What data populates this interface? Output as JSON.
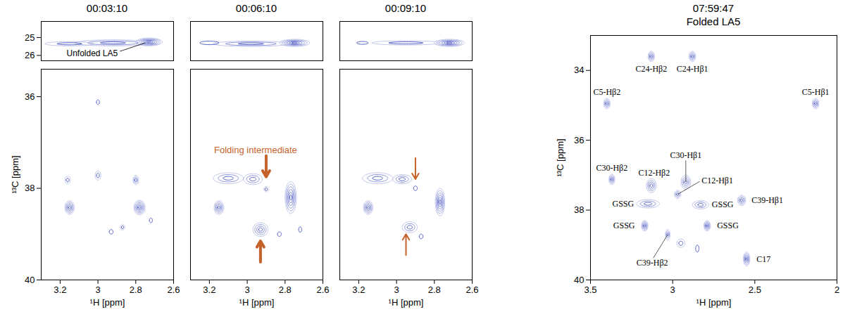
{
  "chart_data": [
    {
      "type": "contour",
      "title": "00:03:10",
      "xlabel": "¹H [ppm]",
      "ylabel": "¹³C [ppm]",
      "xlim": [
        3.3,
        2.6
      ],
      "xticks": [
        3.2,
        3,
        2.8,
        2.6
      ],
      "color": "#2b3bb8",
      "segments": [
        {
          "ylim": [
            26.3,
            24.1
          ],
          "yticks": [
            25,
            26
          ],
          "peaks": [
            {
              "x": 2.73,
              "y": 25.25,
              "x_width": 0.07,
              "y_width": 0.22,
              "intensity": 7
            },
            {
              "x": 2.92,
              "y": 25.3,
              "x_width": 0.2,
              "y_width": 0.17,
              "intensity": 3
            },
            {
              "x": 3.15,
              "y": 25.35,
              "x_width": 0.13,
              "y_width": 0.12,
              "intensity": 2
            }
          ],
          "annotations": [
            {
              "text": "Unfolded LA5",
              "x": 2.75,
              "y": 25.3
            }
          ]
        },
        {
          "ylim": [
            40,
            35.4
          ],
          "yticks": [
            36,
            38,
            40
          ],
          "peaks": [
            {
              "x": 3.15,
              "y": 38.42,
              "x_width": 0.025,
              "y_width": 0.15,
              "intensity": 5
            },
            {
              "x": 2.78,
              "y": 38.42,
              "x_width": 0.03,
              "y_width": 0.16,
              "intensity": 6
            },
            {
              "x": 3.16,
              "y": 37.82,
              "x_width": 0.015,
              "y_width": 0.08,
              "intensity": 2
            },
            {
              "x": 3.0,
              "y": 37.72,
              "x_width": 0.015,
              "y_width": 0.1,
              "intensity": 2
            },
            {
              "x": 2.8,
              "y": 37.82,
              "x_width": 0.015,
              "y_width": 0.1,
              "intensity": 3
            },
            {
              "x": 2.87,
              "y": 38.85,
              "x_width": 0.012,
              "y_width": 0.06,
              "intensity": 2
            },
            {
              "x": 2.93,
              "y": 38.95,
              "x_width": 0.01,
              "y_width": 0.05,
              "intensity": 1
            },
            {
              "x": 3.0,
              "y": 36.12,
              "x_width": 0.008,
              "y_width": 0.05,
              "intensity": 1
            },
            {
              "x": 2.72,
              "y": 38.7,
              "x_width": 0.008,
              "y_width": 0.05,
              "intensity": 1
            }
          ]
        }
      ]
    },
    {
      "type": "contour",
      "title": "00:06:10",
      "xlabel": "¹H [ppm]",
      "tick_labels": "x",
      "xlim": [
        3.3,
        2.6
      ],
      "xticks": [
        3.2,
        3,
        2.8,
        2.6
      ],
      "color": "#2b3bb8",
      "segments": [
        {
          "ylim": [
            26.3,
            24.1
          ],
          "peaks": [
            {
              "x": 2.75,
              "y": 25.3,
              "x_width": 0.08,
              "y_width": 0.2,
              "intensity": 6
            },
            {
              "x": 2.98,
              "y": 25.35,
              "x_width": 0.2,
              "y_width": 0.15,
              "intensity": 3
            },
            {
              "x": 3.2,
              "y": 25.3,
              "x_width": 0.05,
              "y_width": 0.1,
              "intensity": 1
            }
          ]
        },
        {
          "ylim": [
            40,
            35.4
          ],
          "peaks": [
            {
              "x": 3.15,
              "y": 38.42,
              "x_width": 0.025,
              "y_width": 0.15,
              "intensity": 5
            },
            {
              "x": 2.77,
              "y": 38.2,
              "x_width": 0.03,
              "y_width": 0.35,
              "intensity": 6
            },
            {
              "x": 3.1,
              "y": 37.78,
              "x_width": 0.08,
              "y_width": 0.12,
              "intensity": 3
            },
            {
              "x": 2.97,
              "y": 37.8,
              "x_width": 0.05,
              "y_width": 0.12,
              "intensity": 3
            },
            {
              "x": 2.9,
              "y": 38.02,
              "x_width": 0.012,
              "y_width": 0.06,
              "intensity": 2
            },
            {
              "x": 2.93,
              "y": 38.9,
              "x_width": 0.04,
              "y_width": 0.15,
              "intensity": 4
            },
            {
              "x": 2.83,
              "y": 39.0,
              "x_width": 0.01,
              "y_width": 0.05,
              "intensity": 1
            },
            {
              "x": 2.72,
              "y": 38.9,
              "x_width": 0.008,
              "y_width": 0.06,
              "intensity": 1
            }
          ],
          "annotations": [
            {
              "text": "Folding intermediate",
              "arrows": [
                {
                  "x": 2.9,
                  "y": 37.75,
                  "direction": "down"
                },
                {
                  "x": 2.93,
                  "y": 39.15,
                  "direction": "up"
                }
              ]
            }
          ]
        }
      ]
    },
    {
      "type": "contour",
      "title": "00:09:10",
      "xlabel": "¹H [ppm]",
      "tick_labels": "x",
      "xlim": [
        3.3,
        2.6
      ],
      "xticks": [
        3.2,
        3,
        2.8,
        2.6
      ],
      "color": "#2b3bb8",
      "segments": [
        {
          "ylim": [
            26.3,
            24.1
          ],
          "peaks": [
            {
              "x": 2.72,
              "y": 25.3,
              "x_width": 0.08,
              "y_width": 0.2,
              "intensity": 6
            },
            {
              "x": 2.95,
              "y": 25.3,
              "x_width": 0.18,
              "y_width": 0.12,
              "intensity": 2
            },
            {
              "x": 3.18,
              "y": 25.3,
              "x_width": 0.03,
              "y_width": 0.08,
              "intensity": 1
            }
          ]
        },
        {
          "ylim": [
            40,
            35.4
          ],
          "peaks": [
            {
              "x": 3.15,
              "y": 38.42,
              "x_width": 0.025,
              "y_width": 0.15,
              "intensity": 5
            },
            {
              "x": 2.77,
              "y": 38.3,
              "x_width": 0.025,
              "y_width": 0.3,
              "intensity": 6
            },
            {
              "x": 3.1,
              "y": 37.78,
              "x_width": 0.08,
              "y_width": 0.12,
              "intensity": 3
            },
            {
              "x": 2.97,
              "y": 37.8,
              "x_width": 0.05,
              "y_width": 0.1,
              "intensity": 3
            },
            {
              "x": 2.9,
              "y": 38.0,
              "x_width": 0.01,
              "y_width": 0.05,
              "intensity": 1
            },
            {
              "x": 2.93,
              "y": 38.85,
              "x_width": 0.04,
              "y_width": 0.12,
              "intensity": 3
            },
            {
              "x": 2.87,
              "y": 39.05,
              "x_width": 0.01,
              "y_width": 0.05,
              "intensity": 1
            }
          ],
          "annotations": [
            {
              "arrows": [
                {
                  "x": 2.9,
                  "y": 37.8,
                  "direction": "down"
                },
                {
                  "x": 2.95,
                  "y": 39.0,
                  "direction": "up"
                }
              ]
            }
          ]
        }
      ]
    },
    {
      "type": "contour",
      "title": "07:59:47",
      "subtitle": "Folded LA5",
      "xlabel": "¹H [ppm]",
      "ylabel": "¹³C [ppm]",
      "xlim": [
        3.5,
        2
      ],
      "xticks": [
        3.5,
        3,
        2.5,
        2
      ],
      "color": "#2b3bb8",
      "segments": [
        {
          "ylim": [
            40,
            33
          ],
          "yticks": [
            34,
            36,
            38,
            40
          ],
          "peaks": [
            {
              "x": 3.13,
              "y": 33.6,
              "x_width": 0.02,
              "y_width": 0.15,
              "intensity": 4,
              "label": "C24-Hβ2"
            },
            {
              "x": 2.88,
              "y": 33.6,
              "x_width": 0.02,
              "y_width": 0.15,
              "intensity": 4,
              "label": "C24-Hβ1"
            },
            {
              "x": 3.4,
              "y": 34.95,
              "x_width": 0.02,
              "y_width": 0.15,
              "intensity": 4,
              "label": "C5-Hβ2"
            },
            {
              "x": 2.13,
              "y": 34.95,
              "x_width": 0.02,
              "y_width": 0.15,
              "intensity": 4,
              "label": "C5-Hβ1"
            },
            {
              "x": 3.37,
              "y": 37.12,
              "x_width": 0.018,
              "y_width": 0.15,
              "intensity": 4,
              "label": "C30-Hβ2"
            },
            {
              "x": 3.13,
              "y": 37.3,
              "x_width": 0.03,
              "y_width": 0.2,
              "intensity": 4,
              "label": "C12-Hβ2"
            },
            {
              "x": 2.92,
              "y": 37.2,
              "x_width": 0.03,
              "y_width": 0.2,
              "intensity": 4,
              "label": "C30-Hβ1"
            },
            {
              "x": 2.97,
              "y": 37.55,
              "x_width": 0.02,
              "y_width": 0.12,
              "intensity": 3,
              "label": "C12-Hβ1"
            },
            {
              "x": 3.15,
              "y": 37.82,
              "x_width": 0.07,
              "y_width": 0.12,
              "intensity": 3,
              "label": "GSSG"
            },
            {
              "x": 2.83,
              "y": 37.85,
              "x_width": 0.05,
              "y_width": 0.12,
              "intensity": 3,
              "label": "GSSG"
            },
            {
              "x": 3.17,
              "y": 38.45,
              "x_width": 0.02,
              "y_width": 0.15,
              "intensity": 5,
              "label": "GSSG"
            },
            {
              "x": 2.79,
              "y": 38.45,
              "x_width": 0.02,
              "y_width": 0.15,
              "intensity": 5,
              "label": "GSSG"
            },
            {
              "x": 2.58,
              "y": 37.72,
              "x_width": 0.025,
              "y_width": 0.15,
              "intensity": 4,
              "label": "C39-Hβ1"
            },
            {
              "x": 3.03,
              "y": 38.7,
              "x_width": 0.015,
              "y_width": 0.15,
              "intensity": 3,
              "label": "C39-Hβ2"
            },
            {
              "x": 2.55,
              "y": 39.4,
              "x_width": 0.02,
              "y_width": 0.2,
              "intensity": 5,
              "label": "C17"
            },
            {
              "x": 2.95,
              "y": 38.95,
              "x_width": 0.025,
              "y_width": 0.12,
              "intensity": 2
            },
            {
              "x": 2.85,
              "y": 39.1,
              "x_width": 0.01,
              "y_width": 0.1,
              "intensity": 1
            }
          ]
        }
      ]
    }
  ]
}
